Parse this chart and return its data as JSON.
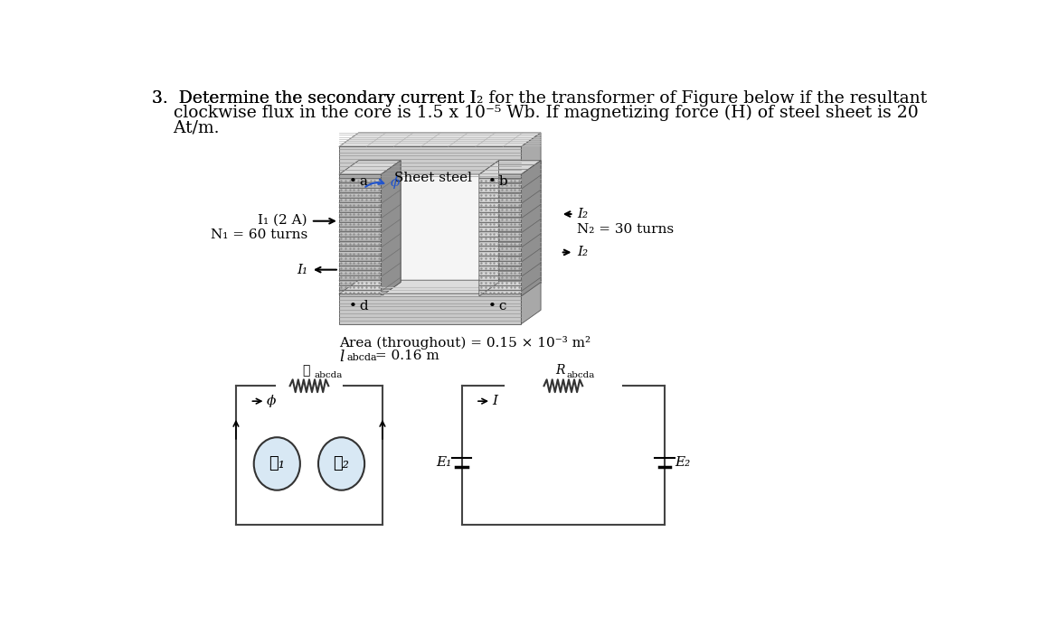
{
  "bg_color": "#ffffff",
  "title_line1": "3.  Determine the secondary current I",
  "title_line1_sub": "2",
  "title_line1_rest": " for the transformer of Figure below if the resultant",
  "title_line2": "    clockwise flux in the core is 1.5 x 10",
  "title_line2_sup": "-5",
  "title_line2_rest": " Wb. If magnetizing force (H) of steel sheet is 20",
  "title_line3": "    At/m.",
  "sheet_steel_label": "Sheet steel",
  "dot_a_label": "•a",
  "dot_b_label": "•b",
  "dot_c_label": "•c",
  "dot_d_label": "•d",
  "phi_sym": "ϕ",
  "I1_label": "I₁ (2 A)",
  "N1_label": "N₁ = 60 turns",
  "I1b_label": "I₁",
  "N2_label": "N₂ = 30 turns",
  "I2a_label": "I₂",
  "I2b_label": "I₂",
  "area_label": "Area (throughout) = 0.15 × 10⁻³ m²",
  "length_label": "l",
  "length_sub": "abcda",
  "length_rest": " = 0.16 m",
  "R1_label": "ℜ",
  "R1_sub": "abcda",
  "R2_label": "R",
  "R2_sub": "abcda",
  "F1_label": "ℱ₁",
  "F2_label": "ℱ₂",
  "phi_circ_label": "ϕ",
  "I_circ_label": "I",
  "E1_label": "E₁",
  "E2_label": "E₂",
  "core_top_color": "#d4d4d4",
  "core_top_face": "#c8c8c8",
  "core_top_side": "#a0a0a0",
  "core_mid_color": "#e8e8e8",
  "core_bot_color": "#d0d0d0",
  "winding_stripe1": "#888888",
  "winding_stripe2": "#aaaaaa",
  "winding_face": "#c0c0c0",
  "winding_3d_face": "#a8a8a8",
  "winding_3d_side": "#888888",
  "inner_white": "#f0f0f0",
  "circuit_line_color": "#444444",
  "resistor_color": "#333333",
  "circle_fill": "#d8e8f4",
  "arrow_color": "#1a1aff",
  "text_color": "#000000"
}
